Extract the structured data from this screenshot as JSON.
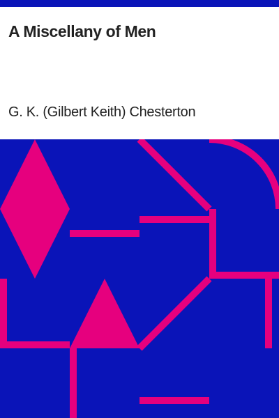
{
  "cover": {
    "title": "A Miscellany of Men",
    "author": "G. K. (Gilbert Keith) Chesterton"
  },
  "colors": {
    "background": "#0a14b8",
    "accent": "#e6007e",
    "text": "#222222",
    "panel": "#ffffff"
  }
}
